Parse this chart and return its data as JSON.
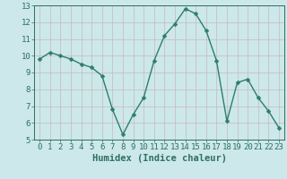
{
  "x": [
    0,
    1,
    2,
    3,
    4,
    5,
    6,
    7,
    8,
    9,
    10,
    11,
    12,
    13,
    14,
    15,
    16,
    17,
    18,
    19,
    20,
    21,
    22,
    23
  ],
  "y": [
    9.8,
    10.2,
    10.0,
    9.8,
    9.5,
    9.3,
    8.8,
    6.8,
    5.3,
    6.5,
    7.5,
    9.7,
    11.2,
    11.9,
    12.8,
    12.5,
    11.5,
    9.7,
    6.1,
    8.4,
    8.6,
    7.5,
    6.7,
    5.7
  ],
  "line_color": "#2e7d6e",
  "marker": "D",
  "markersize": 2.5,
  "linewidth": 1.0,
  "xlabel": "Humidex (Indice chaleur)",
  "xlim": [
    -0.5,
    23.5
  ],
  "ylim": [
    5,
    13
  ],
  "yticks": [
    5,
    6,
    7,
    8,
    9,
    10,
    11,
    12,
    13
  ],
  "xticks": [
    0,
    1,
    2,
    3,
    4,
    5,
    6,
    7,
    8,
    9,
    10,
    11,
    12,
    13,
    14,
    15,
    16,
    17,
    18,
    19,
    20,
    21,
    22,
    23
  ],
  "bg_color": "#cce8ea",
  "grid_color": "#c8b8b8",
  "line_dark": "#2e6e60",
  "xlabel_fontsize": 7.5,
  "tick_fontsize": 6.5
}
